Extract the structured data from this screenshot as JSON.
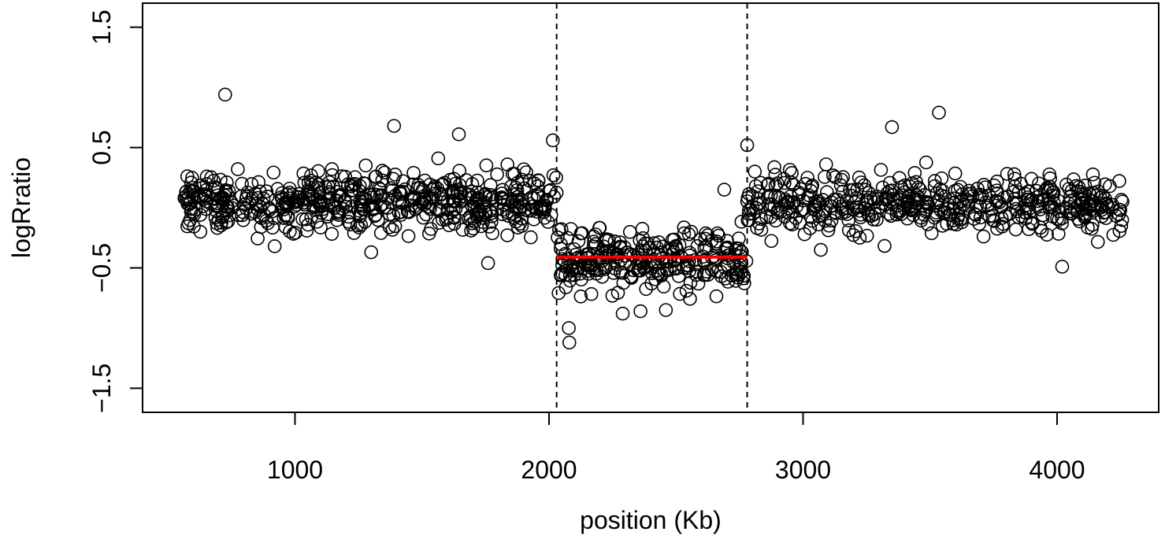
{
  "chart_data": {
    "type": "scatter",
    "title": "",
    "xlabel": "position (Kb)",
    "ylabel": "logRratio",
    "xlim": [
      400,
      4400
    ],
    "ylim": [
      -1.7,
      1.7
    ],
    "x_ticks": [
      1000,
      2000,
      3000,
      4000
    ],
    "x_tick_labels": [
      "1000",
      "2000",
      "3000",
      "4000"
    ],
    "y_ticks": [
      -1.5,
      -0.5,
      0.5,
      1.5
    ],
    "y_tick_labels": [
      "-1.5",
      "-0.5",
      "0.5",
      "1.5"
    ],
    "grid": false,
    "marker": "open-circle",
    "point_color": "#000000",
    "segments": [
      {
        "x_start": 560,
        "x_end": 2030,
        "mean": 0.05
      },
      {
        "x_start": 2030,
        "x_end": 2780,
        "mean": -0.42
      },
      {
        "x_start": 2780,
        "x_end": 4260,
        "mean": 0.03
      }
    ],
    "highlight_segment": {
      "x": [
        2030,
        2780
      ],
      "y": -0.41,
      "color": "#ff0000"
    },
    "breakpoints": [
      2030,
      2780
    ],
    "n_points": 1300,
    "outliers": [
      {
        "x": 725,
        "y": 0.94
      },
      {
        "x": 3535,
        "y": 0.79
      },
      {
        "x": 1390,
        "y": 0.68
      },
      {
        "x": 3350,
        "y": 0.67
      },
      {
        "x": 1645,
        "y": 0.61
      },
      {
        "x": 2015,
        "y": 0.56
      },
      {
        "x": 2078,
        "y": -1.0
      },
      {
        "x": 2080,
        "y": -1.12
      },
      {
        "x": 2290,
        "y": -0.88
      },
      {
        "x": 2460,
        "y": -0.85
      },
      {
        "x": 2360,
        "y": -0.86
      },
      {
        "x": 4020,
        "y": -0.49
      },
      {
        "x": 920,
        "y": -0.32
      },
      {
        "x": 1300,
        "y": -0.37
      },
      {
        "x": 1760,
        "y": -0.46
      },
      {
        "x": 3070,
        "y": -0.35
      },
      {
        "x": 2690,
        "y": 0.15
      },
      {
        "x": 2780,
        "y": 0.52
      }
    ]
  }
}
